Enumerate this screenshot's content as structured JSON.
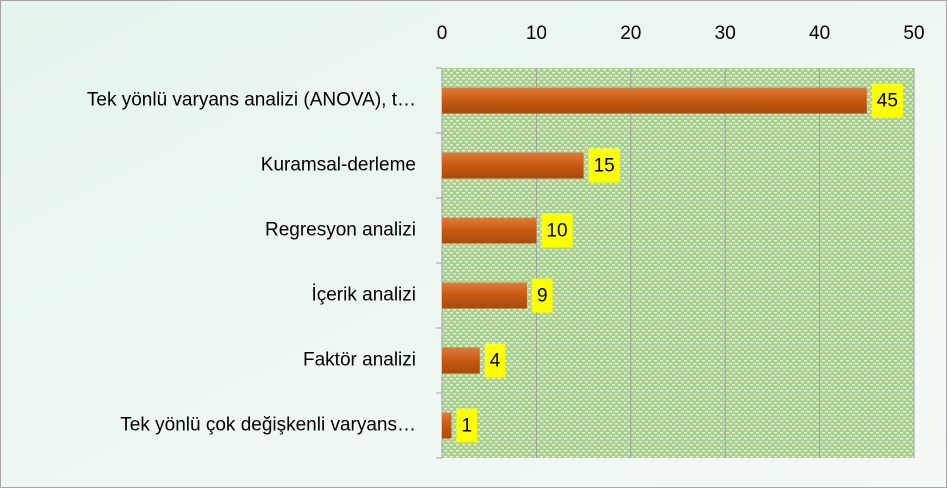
{
  "chart_data": {
    "type": "bar",
    "orientation": "horizontal",
    "categories": [
      "Tek yönlü varyans analizi (ANOVA), t…",
      "Kuramsal-derleme",
      "Regresyon analizi",
      "İçerik analizi",
      "Faktör analizi",
      "Tek yönlü çok değişkenli varyans…"
    ],
    "values": [
      45,
      15,
      10,
      9,
      4,
      1
    ],
    "color": "#c55a11",
    "label_color": "#ffff00",
    "xlim": [
      0,
      50
    ],
    "xticks": [
      0,
      10,
      20,
      30,
      40,
      50
    ],
    "grid": true
  }
}
